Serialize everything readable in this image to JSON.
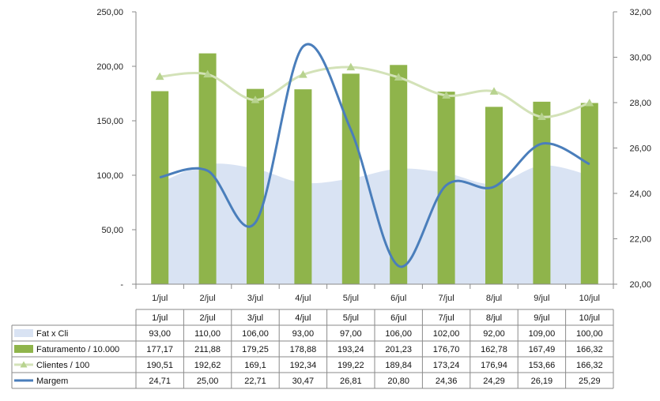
{
  "chart_data": {
    "type": "bar",
    "categories": [
      "1/jul",
      "2/jul",
      "3/jul",
      "4/jul",
      "5/jul",
      "6/jul",
      "7/jul",
      "8/jul",
      "9/jul",
      "10/jul"
    ],
    "left_axis": {
      "ylim": [
        0,
        250
      ],
      "ticks": [
        "-",
        "50,00",
        "100,00",
        "150,00",
        "200,00",
        "250,00"
      ],
      "tick_values": [
        0,
        50,
        100,
        150,
        200,
        250
      ]
    },
    "right_axis": {
      "ylim": [
        20,
        32
      ],
      "ticks": [
        "20,00",
        "22,00",
        "24,00",
        "26,00",
        "28,00",
        "30,00",
        "32,00"
      ],
      "tick_values": [
        20,
        22,
        24,
        26,
        28,
        30,
        32
      ]
    },
    "grid": false,
    "legend": "table-below",
    "series": [
      {
        "name": "Fat x Cli",
        "type": "area",
        "axis": "left",
        "color": "#d9e3f3",
        "values": [
          93,
          110,
          106,
          93,
          97,
          106,
          102,
          92,
          109,
          100
        ],
        "labels": [
          "93,00",
          "110,00",
          "106,00",
          "93,00",
          "97,00",
          "106,00",
          "102,00",
          "92,00",
          "109,00",
          "100,00"
        ]
      },
      {
        "name": "Faturamento / 10.000",
        "type": "bar",
        "axis": "left",
        "color": "#8fb44b",
        "values": [
          177.17,
          211.88,
          179.25,
          178.88,
          193.24,
          201.23,
          176.7,
          162.78,
          167.49,
          166.32
        ],
        "labels": [
          "177,17",
          "211,88",
          "179,25",
          "178,88",
          "193,24",
          "201,23",
          "176,70",
          "162,78",
          "167,49",
          "166,32"
        ]
      },
      {
        "name": "Clientes / 100",
        "type": "line",
        "axis": "left",
        "color": "#d3e2b8",
        "values": [
          190.51,
          192.62,
          169.1,
          192.34,
          199.22,
          189.84,
          173.24,
          176.94,
          153.66,
          166.32
        ],
        "labels": [
          "190,51",
          "192,62",
          "169,1",
          "192,34",
          "199,22",
          "189,84",
          "173,24",
          "176,94",
          "153,66",
          "166,32"
        ]
      },
      {
        "name": "Margem",
        "type": "line",
        "axis": "right",
        "color": "#4a7ebb",
        "values": [
          24.71,
          25.0,
          22.71,
          30.47,
          26.81,
          20.8,
          24.36,
          24.29,
          26.19,
          25.29
        ],
        "labels": [
          "24,71",
          "25,00",
          "22,71",
          "30,47",
          "26,81",
          "20,80",
          "24,36",
          "24,29",
          "26,19",
          "25,29"
        ]
      }
    ]
  }
}
